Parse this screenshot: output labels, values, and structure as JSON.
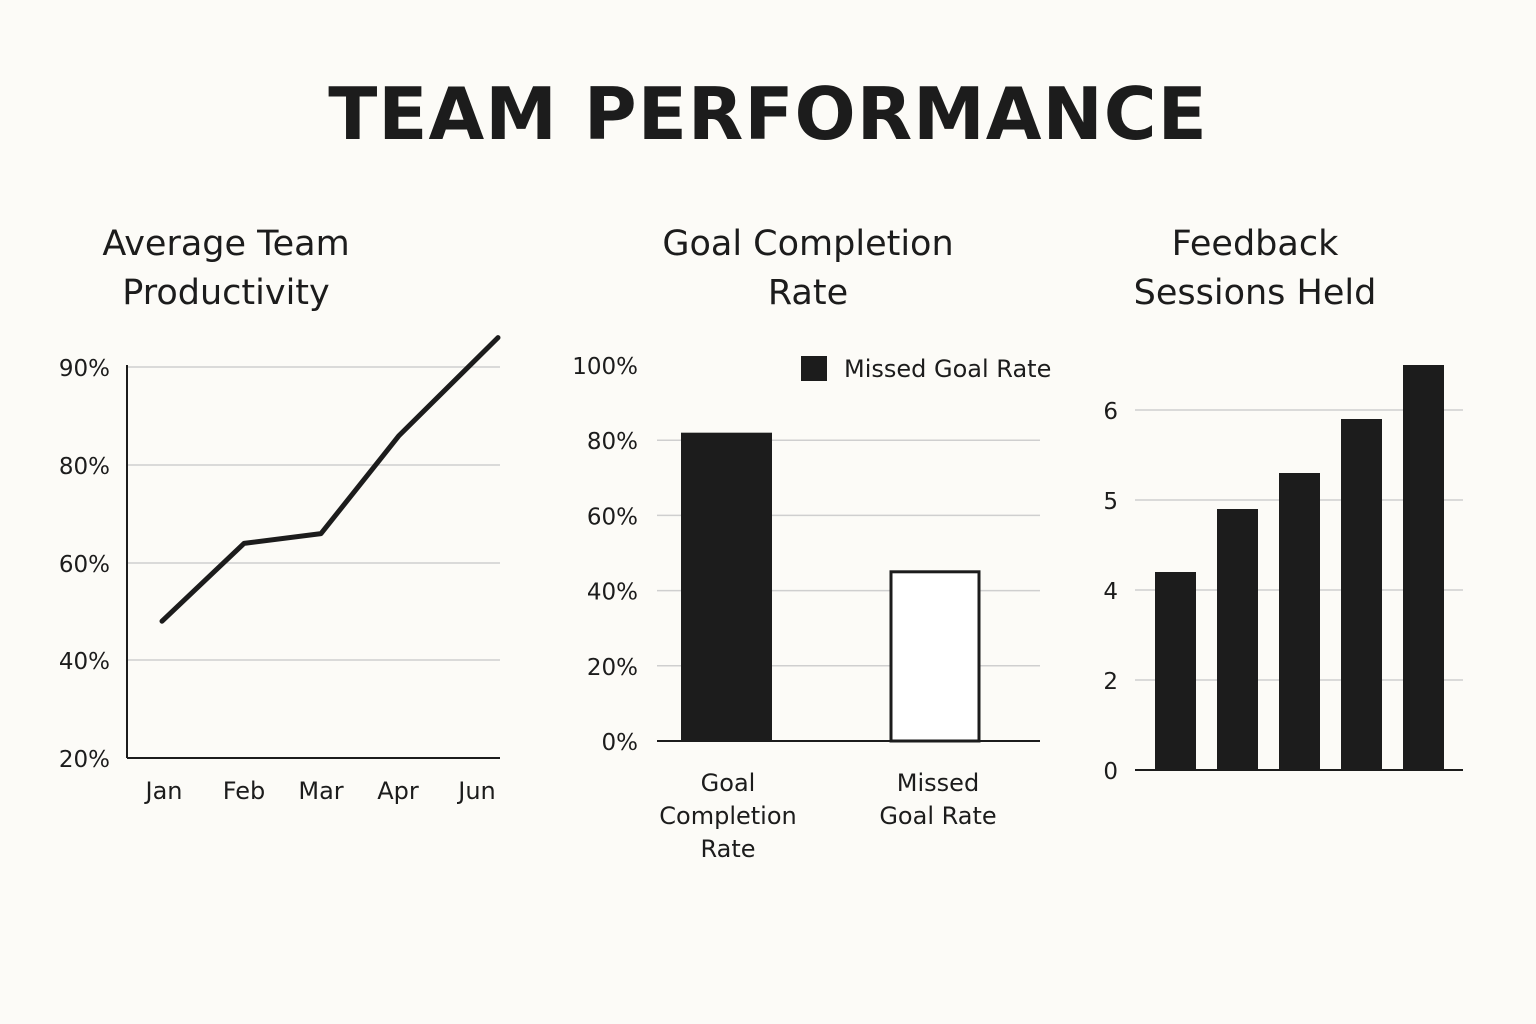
{
  "page_title": "TEAM PERFORMANCE",
  "colors": {
    "ink": "#1c1c1c",
    "grid": "#cfcfcf",
    "background": "#fcfbf7",
    "bar_fill": "#1c1c1c",
    "missed_fill": "#ffffff"
  },
  "chart_data": [
    {
      "type": "line",
      "title_lines": [
        "Average Team",
        "Productivity"
      ],
      "x": [
        "Jan",
        "Feb",
        "Mar",
        "Apr",
        "Jun"
      ],
      "series": [
        {
          "values": [
            48,
            64,
            66,
            83,
            93
          ]
        }
      ],
      "yticks": [
        "90%",
        "80%",
        "60%",
        "40%",
        "20%"
      ],
      "grid": true
    },
    {
      "type": "bar",
      "title_lines": [
        "Goal Completion",
        "Rate"
      ],
      "categories": [
        {
          "lines": [
            "Goal",
            "Completion",
            "Rate"
          ],
          "value": 82,
          "filled": true
        },
        {
          "lines": [
            "Missed",
            "Goal Rate"
          ],
          "value": 45,
          "filled": false
        }
      ],
      "ylim": [
        0,
        100
      ],
      "yticks": [
        "100%",
        "80%",
        "60%",
        "40%",
        "20%",
        "0%"
      ],
      "legend": {
        "label": "Missed Goal Rate",
        "position": "top-right"
      },
      "grid": true
    },
    {
      "type": "bar",
      "title_lines": [
        "Feedback",
        "Sessions Held"
      ],
      "values": [
        4.2,
        4.9,
        5.3,
        5.9,
        6.5
      ],
      "yticks": [
        "6",
        "5",
        "4",
        "2",
        "0"
      ],
      "grid": true
    }
  ]
}
